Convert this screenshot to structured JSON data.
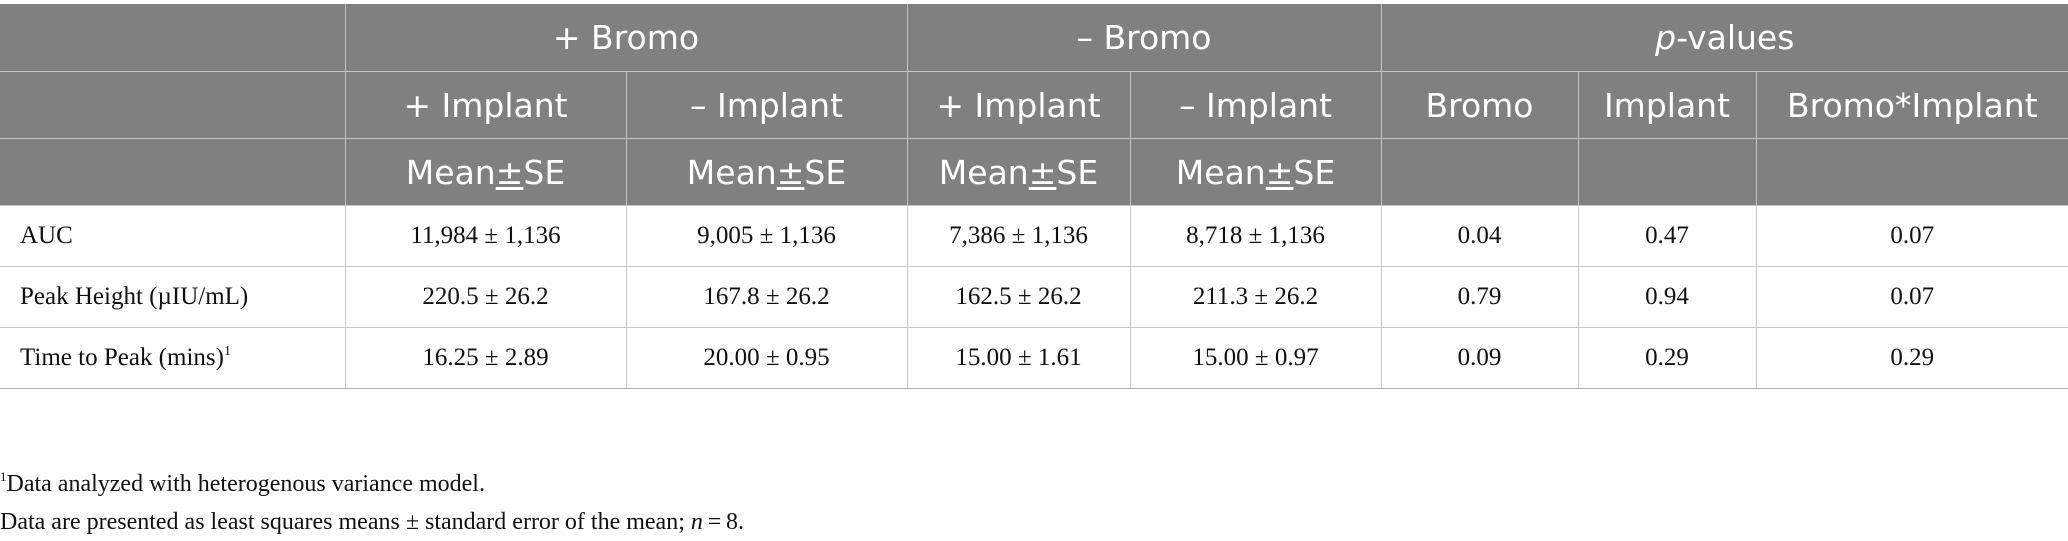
{
  "header": {
    "group_plus_bromo": "+ Bromo",
    "group_minus_bromo": "– Bromo",
    "group_pvalues_italic": "p",
    "group_pvalues_rest": "-values",
    "plus_implant": "+ Implant",
    "minus_implant": "– Implant",
    "pcol_bromo": "Bromo",
    "pcol_implant": "Implant",
    "pcol_interaction": "Bromo*Implant",
    "stat_mean": "Mean",
    "stat_pm": "±",
    "stat_se": "SE"
  },
  "rows": [
    {
      "label": "AUC",
      "label_sup": "",
      "values": [
        "11,984 ± 1,136",
        "9,005 ± 1,136",
        "7,386 ± 1,136",
        "8,718 ± 1,136",
        "0.04",
        "0.47",
        "0.07"
      ]
    },
    {
      "label": "Peak Height (µIU/mL)",
      "label_sup": "",
      "values": [
        "220.5 ± 26.2",
        "167.8 ± 26.2",
        "162.5 ± 26.2",
        "211.3 ± 26.2",
        "0.79",
        "0.94",
        "0.07"
      ]
    },
    {
      "label": "Time to Peak (mins)",
      "label_sup": "1",
      "values": [
        "16.25 ± 2.89",
        "20.00 ± 0.95",
        "15.00 ± 1.61",
        "15.00 ± 0.97",
        "0.09",
        "0.29",
        "0.29"
      ]
    }
  ],
  "footnotes": {
    "note1_marker": "1",
    "note1_text": "Data analyzed with heterogenous variance model.",
    "note2_before": "Data are presented as least squares means ± standard error of the mean; ",
    "note2_italic": "n",
    "note2_after": " = 8."
  }
}
